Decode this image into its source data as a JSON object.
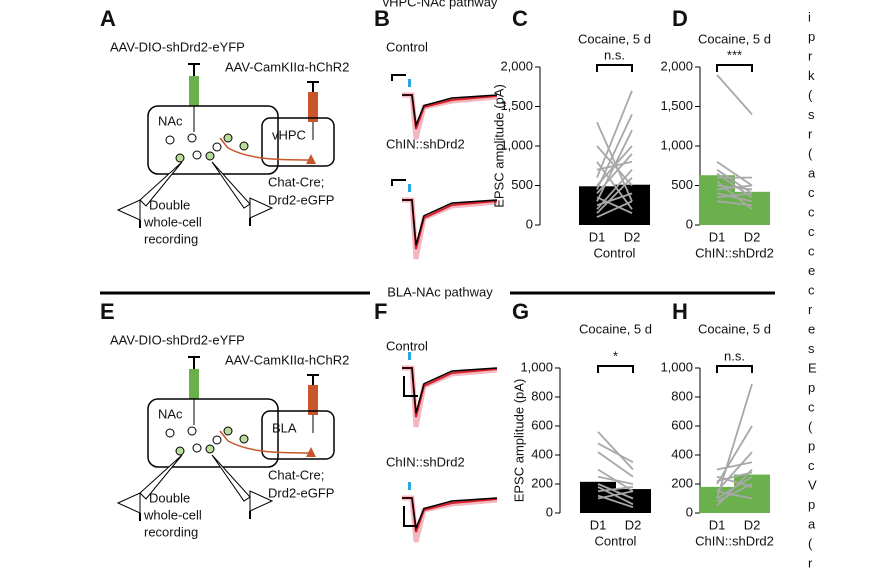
{
  "figure": {
    "section_titles": [
      "vHPC-NAc pathway",
      "BLA-NAc pathway"
    ],
    "diagrams": [
      {
        "letter": "A",
        "virus1": "AAV-DIO-shDrd2-eYFP",
        "virus2": "AAV-CamKIIα-hChR2",
        "region1": "NAc",
        "region2": "vHPC",
        "mouse": [
          "Chat-Cre;",
          "Drd2-eGFP"
        ],
        "recording": [
          "Double",
          "whole-cell",
          "recording"
        ]
      },
      {
        "letter": "E",
        "virus1": "AAV-DIO-shDrd2-eYFP",
        "virus2": "AAV-CamKIIα-hChR2",
        "region1": "NAc",
        "region2": "BLA",
        "mouse": [
          "Chat-Cre;",
          "Drd2-eGFP"
        ],
        "recording": [
          "Double",
          "whole-cell",
          "recording"
        ]
      }
    ],
    "traces": [
      {
        "letter": "B",
        "labels": [
          "Control",
          "ChIN::shDrd2"
        ]
      },
      {
        "letter": "F",
        "labels": [
          "Control",
          "ChIN::shDrd2"
        ]
      }
    ],
    "side_text": [
      "i",
      "p",
      "r",
      "k",
      "(",
      "s",
      "r",
      "(",
      "a",
      "c",
      "c",
      "c",
      "c",
      "e",
      "c",
      "r",
      "e",
      "s",
      "E",
      "p",
      "c",
      "(",
      "p",
      "c",
      "V",
      "p",
      "a",
      "(",
      "r"
    ]
  },
  "chart_data": [
    {
      "type": "bar",
      "letter": "C",
      "title": "Cocaine, 5 d",
      "ylabel": "EPSC amplitude (pA)",
      "xlabel": "Control",
      "significance": "n.s.",
      "categories": [
        "D1",
        "D2"
      ],
      "values": [
        490,
        510
      ],
      "colors": [
        "#000000",
        "#000000"
      ],
      "ylim": [
        0,
        2000
      ],
      "yticks": [
        0,
        500,
        {
          "value": 1000,
          "label": "1,000"
        },
        {
          "value": 1500,
          "label": "1,500"
        },
        {
          "value": 2000,
          "label": "2,000"
        }
      ],
      "pairs": [
        [
          200,
          700
        ],
        [
          300,
          1200
        ],
        [
          400,
          900
        ],
        [
          1300,
          300
        ],
        [
          600,
          1700
        ],
        [
          250,
          400
        ],
        [
          800,
          200
        ],
        [
          150,
          600
        ],
        [
          500,
          1000
        ],
        [
          1000,
          500
        ],
        [
          350,
          150
        ],
        [
          700,
          800
        ],
        [
          100,
          300
        ],
        [
          450,
          1400
        ]
      ]
    },
    {
      "type": "bar",
      "letter": "D",
      "title": "Cocaine, 5 d",
      "xlabel": "ChIN::shDrd2",
      "significance": "***",
      "categories": [
        "D1",
        "D2"
      ],
      "values": [
        630,
        420
      ],
      "colors": [
        "#6ab04c",
        "#6ab04c"
      ],
      "ylim": [
        0,
        2000
      ],
      "yticks": [
        0,
        500,
        {
          "value": 1000,
          "label": "1,000"
        },
        {
          "value": 1500,
          "label": "1,500"
        },
        {
          "value": 2000,
          "label": "2,000"
        }
      ],
      "pairs": [
        [
          1900,
          1400
        ],
        [
          800,
          500
        ],
        [
          700,
          400
        ],
        [
          600,
          600
        ],
        [
          500,
          450
        ],
        [
          400,
          300
        ],
        [
          300,
          250
        ],
        [
          450,
          500
        ],
        [
          650,
          350
        ],
        [
          550,
          200
        ],
        [
          350,
          400
        ]
      ]
    },
    {
      "type": "bar",
      "letter": "G",
      "title": "Cocaine, 5 d",
      "ylabel": "EPSC amplitude (pA)",
      "xlabel": "Control",
      "significance": "*",
      "categories": [
        "D1",
        "D2"
      ],
      "values": [
        215,
        165
      ],
      "colors": [
        "#000000",
        "#000000"
      ],
      "ylim": [
        0,
        1000
      ],
      "yticks": [
        0,
        200,
        400,
        600,
        800,
        {
          "value": 1000,
          "label": "1,000"
        }
      ],
      "pairs": [
        [
          560,
          300
        ],
        [
          480,
          350
        ],
        [
          420,
          250
        ],
        [
          300,
          150
        ],
        [
          250,
          200
        ],
        [
          200,
          100
        ],
        [
          150,
          180
        ],
        [
          100,
          150
        ],
        [
          180,
          60
        ],
        [
          120,
          40
        ]
      ]
    },
    {
      "type": "bar",
      "letter": "H",
      "title": "Cocaine, 5 d",
      "xlabel": "ChIN::shDrd2",
      "significance": "n.s.",
      "categories": [
        "D1",
        "D2"
      ],
      "values": [
        180,
        265
      ],
      "colors": [
        "#6ab04c",
        "#6ab04c"
      ],
      "ylim": [
        0,
        1000
      ],
      "yticks": [
        0,
        200,
        400,
        600,
        800,
        {
          "value": 1000,
          "label": "1,000"
        }
      ],
      "pairs": [
        [
          100,
          890
        ],
        [
          200,
          600
        ],
        [
          150,
          420
        ],
        [
          300,
          350
        ],
        [
          250,
          180
        ],
        [
          100,
          250
        ],
        [
          150,
          100
        ],
        [
          50,
          300
        ],
        [
          80,
          200
        ],
        [
          220,
          280
        ]
      ]
    }
  ]
}
